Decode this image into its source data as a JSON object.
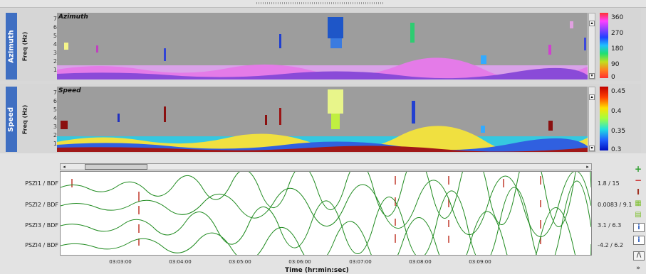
{
  "panels": [
    {
      "tab": "Azimuth",
      "freq_label": "Freq (Hz)",
      "title": "Azimuth",
      "y_ticks": [
        "7",
        "6",
        "5",
        "4",
        "3",
        "2",
        "1"
      ],
      "colorbar_labels": [
        "360",
        "270",
        "180",
        "90",
        "0"
      ]
    },
    {
      "tab": "Speed",
      "freq_label": "Freq (Hz)",
      "title": "Speed",
      "y_ticks": [
        "7",
        "6",
        "5",
        "4",
        "3",
        "2",
        "1"
      ],
      "colorbar_labels": [
        "0.45",
        "0.4",
        "0.35",
        "0.3"
      ]
    }
  ],
  "traces": [
    {
      "label": "PSZI1 / BDF",
      "amplitude": "1.8 / 15"
    },
    {
      "label": "PSZI2 / BDF",
      "amplitude": "0.0083 / 9.1"
    },
    {
      "label": "PSZI3 / BDF",
      "amplitude": "3.1 / 6.3"
    },
    {
      "label": "PSZI4 / BDF",
      "amplitude": "-4.2 / 6.2"
    }
  ],
  "x_ticks": [
    "03:03:00",
    "03:04:00",
    "03:05:00",
    "03:06:00",
    "03:07:00",
    "03:08:00",
    "03:09:00"
  ],
  "x_title": "Time (hr:min:sec)",
  "colors": {
    "trace": "#1e8a1e",
    "arrival": "#c0392b",
    "tab": "#3f6fc2",
    "spectrogram_bg": "#9d9d9d"
  },
  "tools": [
    "zoom-in-icon",
    "zoom-out-icon",
    "fit-amplitude-icon",
    "grid-4-icon",
    "grid-2-icon",
    "info-icon",
    "info-alt-icon",
    "filter-icon",
    "chevron-down-icon"
  ]
}
